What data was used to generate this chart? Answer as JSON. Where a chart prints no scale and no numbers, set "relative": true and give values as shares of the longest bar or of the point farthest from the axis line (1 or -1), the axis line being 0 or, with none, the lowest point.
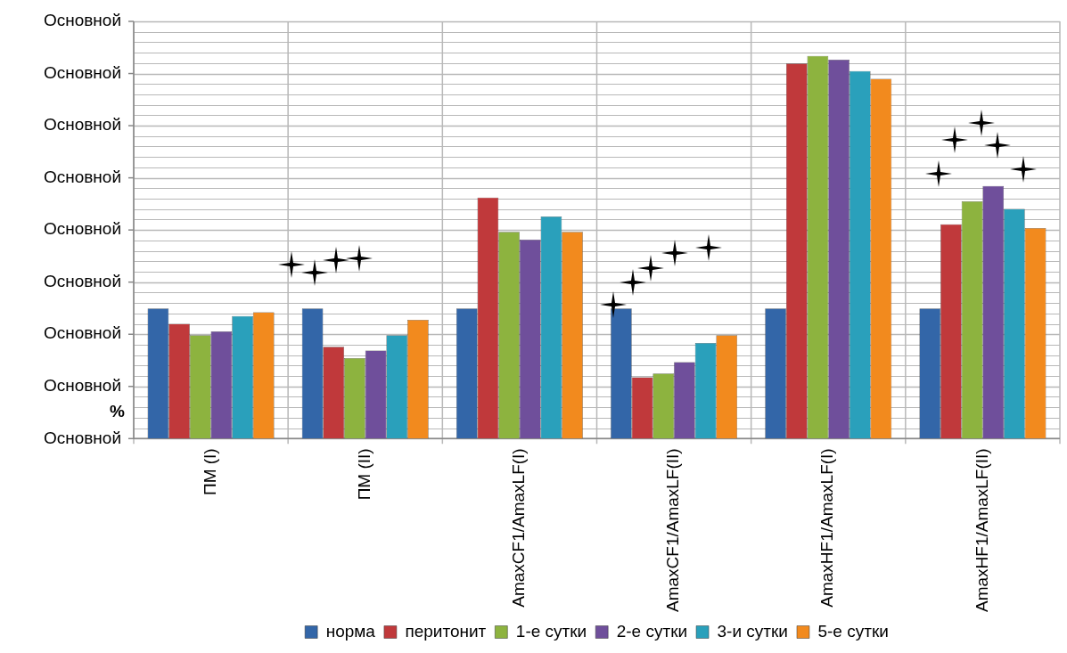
{
  "chart_data": {
    "type": "bar",
    "relative": true,
    "ylabel": "%",
    "categories": [
      "ПМ (I)",
      "ПМ (II)",
      "AmaxCF1/AmaxLF(I)",
      "AmaxCF1/AmaxLF(II)",
      "AmaxHF1/AmaxLF(I)",
      "AmaxHF1/AmaxLF(II)"
    ],
    "series": [
      {
        "name": "норма",
        "color": "#3366a8",
        "values": [
          0.34,
          0.34,
          0.34,
          0.34,
          0.34,
          0.34
        ]
      },
      {
        "name": "перитонит",
        "color": "#c0393b",
        "values": [
          0.3,
          0.24,
          0.63,
          0.16,
          0.98,
          0.56
        ]
      },
      {
        "name": "1-е сутки",
        "color": "#8db33f",
        "values": [
          0.27,
          0.21,
          0.54,
          0.17,
          1.0,
          0.62
        ]
      },
      {
        "name": "2-е сутки",
        "color": "#6f4f9b",
        "values": [
          0.28,
          0.23,
          0.52,
          0.2,
          0.99,
          0.66
        ]
      },
      {
        "name": "3-и сутки",
        "color": "#2aa0bb",
        "values": [
          0.32,
          0.27,
          0.58,
          0.25,
          0.96,
          0.6
        ]
      },
      {
        "name": "5-е сутки",
        "color": "#f28a1e",
        "values": [
          0.33,
          0.31,
          0.54,
          0.27,
          0.94,
          0.55
        ]
      }
    ],
    "annotations": [
      "Основной",
      "Основной",
      "Основной",
      "Основной",
      "Основной",
      "Основной",
      "Основной",
      "Основной",
      "Основной"
    ],
    "grid": true,
    "legend": "bottom"
  }
}
